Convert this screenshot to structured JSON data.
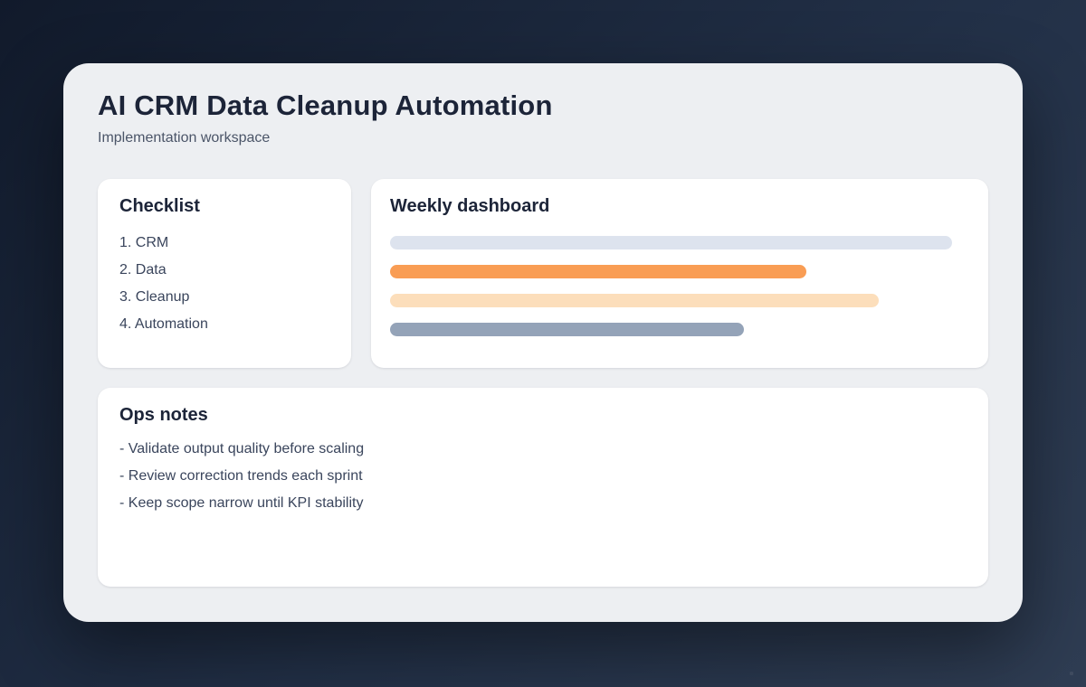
{
  "header": {
    "title": "AI CRM Data Cleanup Automation",
    "subtitle": "Implementation workspace"
  },
  "checklist": {
    "heading": "Checklist",
    "items": [
      "1. CRM",
      "2. Data",
      "3. Cleanup",
      "4. Automation"
    ]
  },
  "dashboard": {
    "heading": "Weekly dashboard",
    "bars": [
      {
        "name": "metric-bar-track",
        "color": "#dde3ee",
        "width_pct": 100
      },
      {
        "name": "metric-bar-orange",
        "color": "#f99d54",
        "width_pct": 74
      },
      {
        "name": "metric-bar-peach",
        "color": "#fcdebb",
        "width_pct": 87
      },
      {
        "name": "metric-bar-slate",
        "color": "#94a3b8",
        "width_pct": 63
      }
    ]
  },
  "notes": {
    "heading": "Ops notes",
    "items": [
      "- Validate output quality before scaling",
      "- Review correction trends each sprint",
      "- Keep scope narrow until KPI stability"
    ]
  },
  "theme": {
    "background_gradient_start": "#111a2b",
    "background_gradient_end": "#2f3d53",
    "panel_background": "#edeff2",
    "card_background": "#ffffff",
    "heading_color": "#1c2438",
    "body_text_color": "#3a455c",
    "subtitle_color": "#4b5568"
  }
}
